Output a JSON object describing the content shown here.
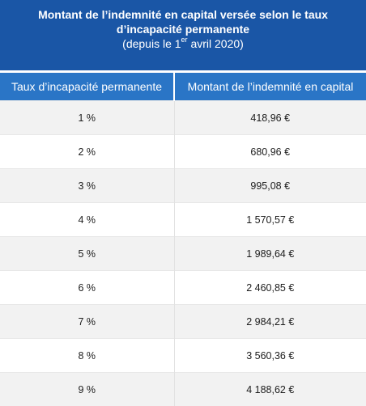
{
  "table": {
    "title": "Montant de l’indemnité en capital versée selon le taux d’incapacité permanente",
    "subtitle_prefix": "(depuis le 1",
    "subtitle_sup": "er",
    "subtitle_suffix": " avril 2020)",
    "columns": [
      "Taux d’incapacité permanente",
      "Montant de l’indemnité en capital"
    ],
    "rows": [
      {
        "rate": "1 %",
        "amount": "418,96 €"
      },
      {
        "rate": "2 %",
        "amount": "680,96 €"
      },
      {
        "rate": "3 %",
        "amount": "995,08 €"
      },
      {
        "rate": "4 %",
        "amount": "1 570,57 €"
      },
      {
        "rate": "5 %",
        "amount": "1 989,64 €"
      },
      {
        "rate": "6 %",
        "amount": "2 460,85 €"
      },
      {
        "rate": "7 %",
        "amount": "2 984,21 €"
      },
      {
        "rate": "8 %",
        "amount": "3 560,36 €"
      },
      {
        "rate": "9 %",
        "amount": "4 188,62 €"
      }
    ]
  },
  "colors": {
    "caption_bg": "#1a56a6",
    "header_bg": "#2a75c6",
    "row_alt_bg": "#f2f2f2"
  }
}
